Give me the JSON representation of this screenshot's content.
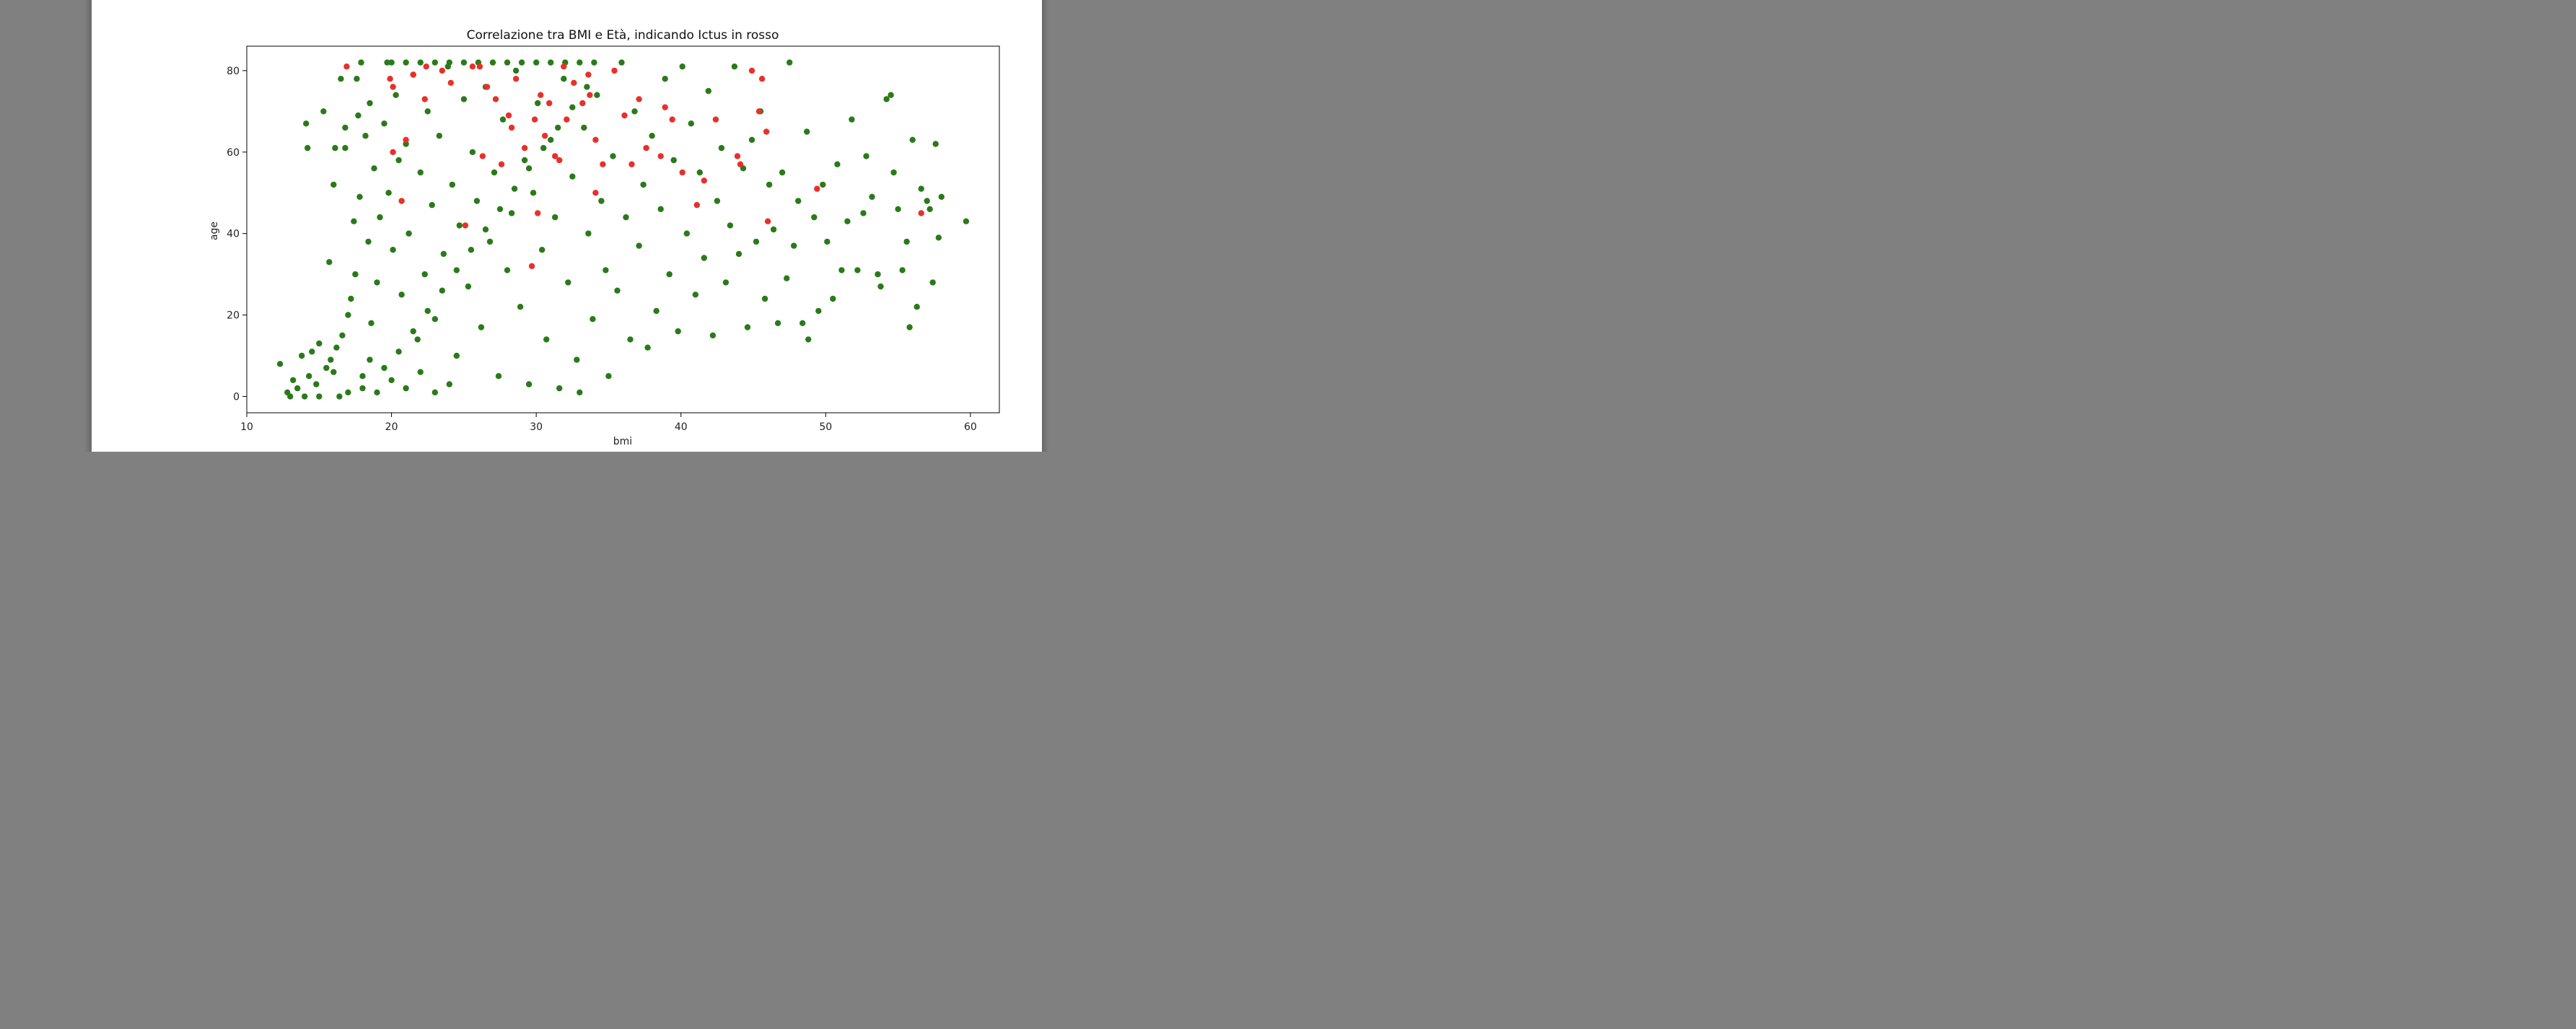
{
  "chart_data": {
    "type": "scatter",
    "title": "Correlazione tra BMI e Età, indicando Ictus in rosso",
    "xlabel": "bmi",
    "ylabel": "age",
    "xlim": [
      10,
      62
    ],
    "ylim": [
      -4,
      86
    ],
    "xticks": [
      10,
      20,
      30,
      40,
      50,
      60
    ],
    "yticks": [
      0,
      20,
      40,
      60,
      80
    ],
    "grid": false,
    "legend": "none",
    "colors": {
      "no_stroke": "#2a7a1a",
      "stroke": "#e8302a"
    },
    "series": [
      {
        "color": "#2a7a1a",
        "points": [
          [
            12.3,
            8
          ],
          [
            12.8,
            1
          ],
          [
            13.0,
            0
          ],
          [
            13.2,
            4
          ],
          [
            13.5,
            2
          ],
          [
            13.8,
            10
          ],
          [
            14.0,
            0
          ],
          [
            14.1,
            67
          ],
          [
            14.2,
            61
          ],
          [
            14.3,
            5
          ],
          [
            14.5,
            11
          ],
          [
            14.8,
            3
          ],
          [
            15.0,
            13
          ],
          [
            15.0,
            0
          ],
          [
            15.3,
            70
          ],
          [
            15.5,
            7
          ],
          [
            15.7,
            33
          ],
          [
            15.8,
            9
          ],
          [
            16.0,
            52
          ],
          [
            16.1,
            61
          ],
          [
            16.2,
            12
          ],
          [
            16.4,
            0
          ],
          [
            16.5,
            78
          ],
          [
            16.6,
            15
          ],
          [
            16.8,
            66
          ],
          [
            16.8,
            61
          ],
          [
            17.0,
            20
          ],
          [
            17.2,
            24
          ],
          [
            17.4,
            43
          ],
          [
            17.5,
            30
          ],
          [
            17.6,
            78
          ],
          [
            17.7,
            69
          ],
          [
            17.8,
            49
          ],
          [
            17.9,
            82
          ],
          [
            18.0,
            5
          ],
          [
            18.2,
            64
          ],
          [
            18.4,
            38
          ],
          [
            18.5,
            72
          ],
          [
            18.6,
            18
          ],
          [
            18.8,
            56
          ],
          [
            19.0,
            28
          ],
          [
            19.2,
            44
          ],
          [
            19.5,
            67
          ],
          [
            19.7,
            82
          ],
          [
            19.8,
            50
          ],
          [
            20.1,
            36
          ],
          [
            20.3,
            74
          ],
          [
            20.5,
            58
          ],
          [
            20.7,
            25
          ],
          [
            21.0,
            62
          ],
          [
            21.2,
            40
          ],
          [
            21.5,
            79
          ],
          [
            21.8,
            14
          ],
          [
            22.0,
            55
          ],
          [
            22.3,
            30
          ],
          [
            22.5,
            70
          ],
          [
            22.8,
            47
          ],
          [
            23.0,
            19
          ],
          [
            23.3,
            64
          ],
          [
            23.6,
            35
          ],
          [
            23.9,
            81
          ],
          [
            24.2,
            52
          ],
          [
            24.5,
            10
          ],
          [
            24.7,
            42
          ],
          [
            25.0,
            73
          ],
          [
            25.3,
            27
          ],
          [
            25.6,
            60
          ],
          [
            25.9,
            48
          ],
          [
            26.2,
            17
          ],
          [
            26.5,
            76
          ],
          [
            26.8,
            38
          ],
          [
            27.1,
            55
          ],
          [
            27.4,
            5
          ],
          [
            27.7,
            68
          ],
          [
            28.0,
            31
          ],
          [
            28.3,
            45
          ],
          [
            28.6,
            80
          ],
          [
            28.9,
            22
          ],
          [
            29.2,
            58
          ],
          [
            29.5,
            3
          ],
          [
            29.8,
            50
          ],
          [
            30.1,
            72
          ],
          [
            30.4,
            36
          ],
          [
            30.7,
            14
          ],
          [
            31.0,
            63
          ],
          [
            31.3,
            44
          ],
          [
            31.6,
            2
          ],
          [
            31.9,
            78
          ],
          [
            32.2,
            28
          ],
          [
            32.5,
            54
          ],
          [
            32.8,
            9
          ],
          [
            33.0,
            1
          ],
          [
            33.3,
            66
          ],
          [
            33.6,
            40
          ],
          [
            33.9,
            19
          ],
          [
            34.2,
            74
          ],
          [
            34.5,
            48
          ],
          [
            34.8,
            31
          ],
          [
            35.0,
            5
          ],
          [
            35.3,
            59
          ],
          [
            35.6,
            26
          ],
          [
            35.9,
            82
          ],
          [
            36.2,
            44
          ],
          [
            36.5,
            14
          ],
          [
            36.8,
            70
          ],
          [
            37.1,
            37
          ],
          [
            37.4,
            52
          ],
          [
            37.7,
            12
          ],
          [
            38.0,
            64
          ],
          [
            38.3,
            21
          ],
          [
            38.6,
            46
          ],
          [
            38.9,
            78
          ],
          [
            39.2,
            30
          ],
          [
            39.5,
            58
          ],
          [
            39.8,
            16
          ],
          [
            40.1,
            81
          ],
          [
            40.4,
            40
          ],
          [
            40.7,
            67
          ],
          [
            41.0,
            25
          ],
          [
            41.3,
            55
          ],
          [
            41.6,
            34
          ],
          [
            41.9,
            75
          ],
          [
            42.2,
            15
          ],
          [
            42.5,
            48
          ],
          [
            42.8,
            61
          ],
          [
            43.1,
            28
          ],
          [
            43.4,
            42
          ],
          [
            43.7,
            81
          ],
          [
            44.0,
            35
          ],
          [
            44.3,
            56
          ],
          [
            44.6,
            17
          ],
          [
            44.9,
            63
          ],
          [
            45.2,
            38
          ],
          [
            45.5,
            70
          ],
          [
            45.8,
            24
          ],
          [
            46.1,
            52
          ],
          [
            46.4,
            41
          ],
          [
            46.7,
            18
          ],
          [
            47.0,
            55
          ],
          [
            47.3,
            29
          ],
          [
            47.5,
            82
          ],
          [
            47.8,
            37
          ],
          [
            48.1,
            48
          ],
          [
            48.4,
            18
          ],
          [
            48.7,
            65
          ],
          [
            48.8,
            14
          ],
          [
            49.2,
            44
          ],
          [
            49.5,
            21
          ],
          [
            49.8,
            52
          ],
          [
            50.1,
            38
          ],
          [
            50.5,
            24
          ],
          [
            50.8,
            57
          ],
          [
            51.1,
            31
          ],
          [
            51.5,
            43
          ],
          [
            51.8,
            68
          ],
          [
            52.2,
            31
          ],
          [
            52.6,
            45
          ],
          [
            52.8,
            59
          ],
          [
            53.2,
            49
          ],
          [
            53.6,
            30
          ],
          [
            53.8,
            27
          ],
          [
            54.2,
            73
          ],
          [
            54.5,
            74
          ],
          [
            54.7,
            55
          ],
          [
            55.0,
            46
          ],
          [
            55.3,
            31
          ],
          [
            55.6,
            38
          ],
          [
            55.8,
            17
          ],
          [
            56.0,
            63
          ],
          [
            56.3,
            22
          ],
          [
            56.6,
            51
          ],
          [
            57.0,
            48
          ],
          [
            57.2,
            46
          ],
          [
            57.4,
            28
          ],
          [
            57.6,
            62
          ],
          [
            57.8,
            39
          ],
          [
            58.0,
            49
          ],
          [
            59.7,
            43
          ],
          [
            18.0,
            2
          ],
          [
            19.0,
            1
          ],
          [
            20.0,
            4
          ],
          [
            21.0,
            2
          ],
          [
            22.0,
            6
          ],
          [
            23.0,
            1
          ],
          [
            24.0,
            3
          ],
          [
            16.0,
            6
          ],
          [
            17.0,
            1
          ],
          [
            18.5,
            9
          ],
          [
            19.5,
            7
          ],
          [
            20.5,
            11
          ],
          [
            21.5,
            16
          ],
          [
            22.5,
            21
          ],
          [
            23.5,
            26
          ],
          [
            24.5,
            31
          ],
          [
            25.5,
            36
          ],
          [
            26.5,
            41
          ],
          [
            27.5,
            46
          ],
          [
            28.5,
            51
          ],
          [
            29.5,
            56
          ],
          [
            30.5,
            61
          ],
          [
            31.5,
            66
          ],
          [
            32.5,
            71
          ],
          [
            33.5,
            76
          ],
          [
            20.0,
            82
          ],
          [
            21.0,
            82
          ],
          [
            22.0,
            82
          ],
          [
            23.0,
            82
          ],
          [
            24.0,
            82
          ],
          [
            25.0,
            82
          ],
          [
            26.0,
            82
          ],
          [
            27.0,
            82
          ],
          [
            28.0,
            82
          ],
          [
            29.0,
            82
          ],
          [
            30.0,
            82
          ],
          [
            31.0,
            82
          ],
          [
            32.0,
            82
          ],
          [
            33.0,
            82
          ],
          [
            34.0,
            82
          ]
        ]
      },
      {
        "color": "#e8302a",
        "points": [
          [
            16.9,
            81
          ],
          [
            19.9,
            78
          ],
          [
            20.1,
            76
          ],
          [
            21.5,
            79
          ],
          [
            22.4,
            81
          ],
          [
            23.5,
            80
          ],
          [
            25.6,
            81
          ],
          [
            26.1,
            81
          ],
          [
            26.6,
            76
          ],
          [
            27.2,
            73
          ],
          [
            28.1,
            69
          ],
          [
            28.6,
            78
          ],
          [
            29.2,
            61
          ],
          [
            29.9,
            68
          ],
          [
            30.3,
            74
          ],
          [
            30.9,
            72
          ],
          [
            31.3,
            59
          ],
          [
            31.9,
            81
          ],
          [
            32.6,
            77
          ],
          [
            33.2,
            72
          ],
          [
            33.6,
            79
          ],
          [
            34.1,
            63
          ],
          [
            34.6,
            57
          ],
          [
            35.4,
            80
          ],
          [
            36.1,
            69
          ],
          [
            36.6,
            57
          ],
          [
            37.1,
            73
          ],
          [
            37.6,
            61
          ],
          [
            38.6,
            59
          ],
          [
            38.9,
            71
          ],
          [
            39.4,
            68
          ],
          [
            40.1,
            55
          ],
          [
            41.1,
            47
          ],
          [
            41.6,
            53
          ],
          [
            42.4,
            68
          ],
          [
            43.9,
            59
          ],
          [
            44.1,
            57
          ],
          [
            44.9,
            80
          ],
          [
            45.6,
            78
          ],
          [
            45.4,
            70
          ],
          [
            45.9,
            65
          ],
          [
            46.0,
            43
          ],
          [
            49.4,
            51
          ],
          [
            56.6,
            45
          ],
          [
            21.0,
            63
          ],
          [
            20.1,
            60
          ],
          [
            20.7,
            48
          ],
          [
            22.3,
            73
          ],
          [
            24.1,
            77
          ],
          [
            25.1,
            42
          ],
          [
            26.3,
            59
          ],
          [
            27.6,
            57
          ],
          [
            28.3,
            66
          ],
          [
            29.7,
            32
          ],
          [
            30.1,
            45
          ],
          [
            30.6,
            64
          ],
          [
            31.6,
            58
          ],
          [
            32.1,
            68
          ],
          [
            33.7,
            74
          ],
          [
            34.1,
            50
          ]
        ]
      }
    ]
  }
}
